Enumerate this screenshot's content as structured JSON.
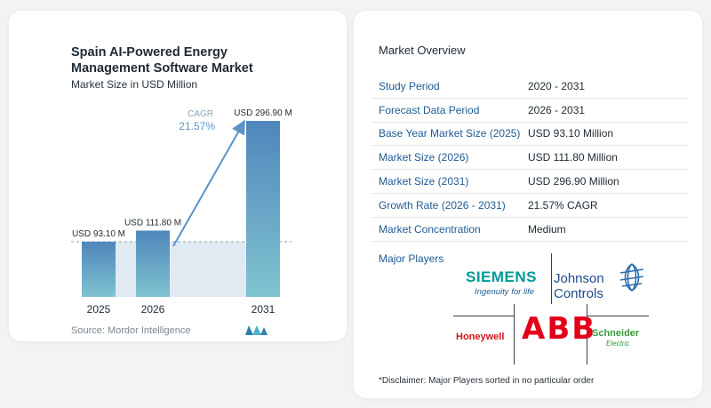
{
  "chart": {
    "title": "Spain AI-Powered Energy Management Software Market",
    "subtitle": "Market Size in USD Million",
    "source": "Source: Mordor Intelligence",
    "cagr_label": "CAGR",
    "cagr_value": "21.57%"
  },
  "chart_data": {
    "type": "bar",
    "categories": [
      "2025",
      "2026",
      "2031"
    ],
    "values": [
      93.1,
      111.8,
      296.9
    ],
    "data_labels": [
      "USD 93.10 M",
      "USD 111.80 M",
      "USD 296.90 M"
    ],
    "title": "Spain AI-Powered Energy Management Software Market",
    "subtitle": "Market Size in USD Million",
    "xlabel": "",
    "ylabel": "",
    "ylim": [
      0,
      296.9
    ],
    "grid": false,
    "colors": {
      "bar": "#5e9ec5",
      "bar_top": "#4a7fb5",
      "baseline": "#b8cfe0",
      "arrow": "#5b93c4"
    }
  },
  "overview": {
    "title": "Market Overview",
    "rows": [
      {
        "label": "Study Period",
        "value": "2020 - 2031"
      },
      {
        "label": "Forecast Data Period",
        "value": "2026 - 2031"
      },
      {
        "label": "Base Year Market Size (2025)",
        "value": "USD 93.10 Million"
      },
      {
        "label": "Market Size (2026)",
        "value": "USD 111.80 Million"
      },
      {
        "label": "Market Size (2031)",
        "value": "USD 296.90 Million"
      },
      {
        "label": "Growth Rate (2026 - 2031)",
        "value": "21.57% CAGR"
      },
      {
        "label": "Market Concentration",
        "value": "Medium"
      }
    ],
    "major_players_label": "Major Players",
    "players": {
      "siemens": "SIEMENS",
      "siemens_tagline": "Ingenuity for life",
      "johnson_controls": "Johnson Controls",
      "honeywell": "Honeywell",
      "abb": "ABB",
      "schneider": "Schneider",
      "schneider_sub": "Electric"
    },
    "disclaimer": "*Disclaimer: Major Players sorted in no particular order"
  }
}
